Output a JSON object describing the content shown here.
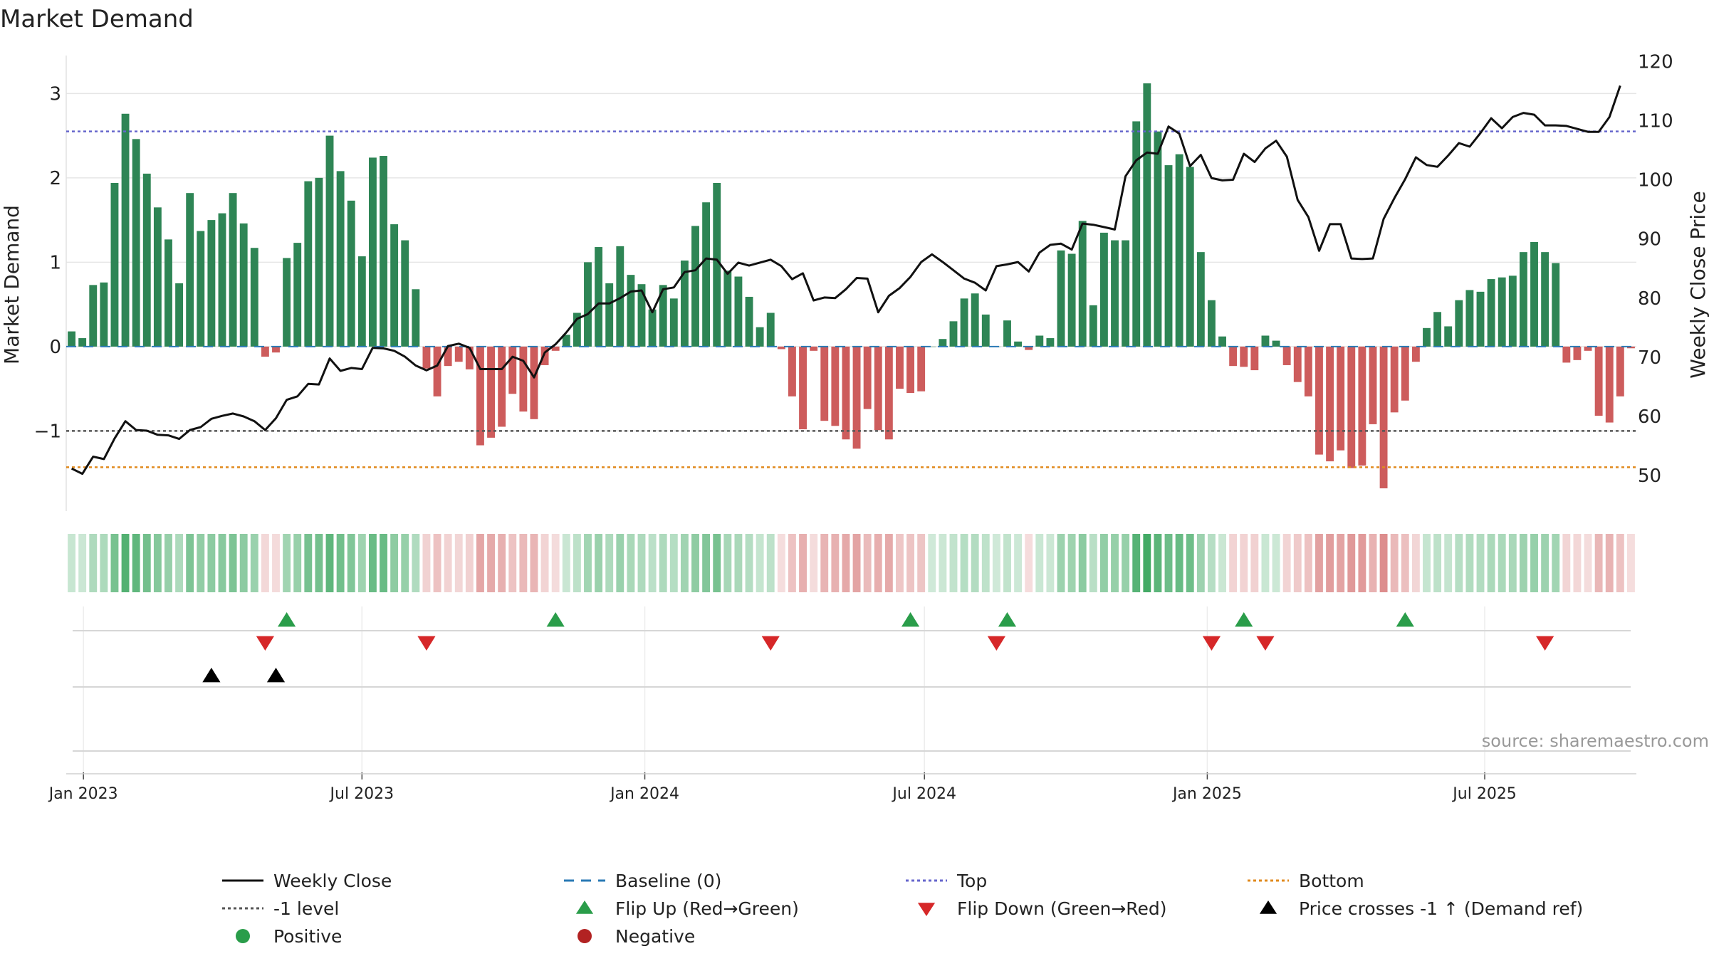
{
  "chart_data": {
    "type": "bar",
    "title": "Market Demand",
    "ylabel_left": "Market Demand",
    "ylabel_right": "Weekly Close Price",
    "ylim_left": [
      -1.95,
      3.45
    ],
    "ylim_right": [
      44,
      121
    ],
    "yticks_left": [
      3,
      2,
      1,
      0,
      -1
    ],
    "ytick_labels_left": [
      "3",
      "2",
      "1",
      "0",
      "−1"
    ],
    "yticks_right": [
      120,
      110,
      100,
      90,
      80,
      70,
      60,
      50
    ],
    "ytick_labels_right": [
      "120",
      "110",
      "100",
      "90",
      "80",
      "70",
      "60",
      "50"
    ],
    "x_ticks": [
      {
        "label": "Jan 2023",
        "week": 1.6
      },
      {
        "label": "Jul 2023",
        "week": 27.5
      },
      {
        "label": "Jan 2024",
        "week": 53.8
      },
      {
        "label": "Jul 2024",
        "week": 79.8
      },
      {
        "label": "Jan 2025",
        "week": 106.1
      },
      {
        "label": "Jul 2025",
        "week": 131.9
      }
    ],
    "n_weeks": 145,
    "reference_lines": {
      "top": 2.55,
      "minus_one": -1.0,
      "bottom": -1.43,
      "baseline": 0
    },
    "series": [
      {
        "name": "Market Demand",
        "values": [
          0.18,
          0.1,
          0.73,
          0.76,
          1.94,
          2.76,
          2.46,
          2.05,
          1.65,
          1.27,
          0.75,
          1.82,
          1.37,
          1.5,
          1.58,
          1.82,
          1.46,
          1.17,
          -0.12,
          -0.07,
          1.05,
          1.23,
          1.96,
          2.0,
          2.5,
          2.08,
          1.73,
          1.07,
          2.24,
          2.26,
          1.45,
          1.26,
          0.68,
          -0.26,
          -0.59,
          -0.23,
          -0.18,
          -0.27,
          -1.17,
          -1.08,
          -0.95,
          -0.56,
          -0.77,
          -0.86,
          -0.22,
          -0.05,
          0.14,
          0.4,
          1.0,
          1.18,
          0.75,
          1.19,
          0.85,
          0.74,
          0.44,
          0.73,
          0.57,
          1.02,
          1.43,
          1.71,
          1.94,
          0.9,
          0.83,
          0.59,
          0.23,
          0.4,
          -0.03,
          -0.59,
          -0.98,
          -0.05,
          -0.88,
          -0.94,
          -1.1,
          -1.21,
          -0.74,
          -0.99,
          -1.1,
          -0.5,
          -0.55,
          -0.53,
          0.0,
          0.09,
          0.3,
          0.57,
          0.63,
          0.38,
          0.0,
          0.31,
          0.06,
          -0.04,
          0.13,
          0.1,
          1.14,
          1.1,
          1.49,
          0.49,
          1.35,
          1.26,
          1.26,
          2.67,
          3.12,
          2.55,
          2.15,
          2.28,
          2.13,
          1.12,
          0.55,
          0.12,
          -0.23,
          -0.24,
          -0.28,
          0.13,
          0.07,
          -0.22,
          -0.42,
          -0.59,
          -1.28,
          -1.36,
          -1.23,
          -1.44,
          -1.41,
          -0.92,
          -1.68,
          -0.78,
          -0.64,
          -0.18,
          0.22,
          0.41,
          0.24,
          0.55,
          0.67,
          0.65,
          0.8,
          0.82,
          0.84,
          1.12,
          1.24,
          1.12,
          0.99,
          -0.19,
          -0.16,
          -0.05,
          -0.82,
          -0.9,
          -0.59,
          -0.02
        ]
      },
      {
        "name": "Weekly Close",
        "values": [
          51.2,
          50.3,
          53.2,
          52.8,
          56.3,
          59.2,
          57.7,
          57.6,
          56.9,
          56.8,
          56.2,
          57.7,
          58.2,
          59.6,
          60.1,
          60.5,
          60.0,
          59.2,
          57.7,
          59.7,
          62.8,
          63.4,
          65.5,
          65.4,
          69.8,
          67.7,
          68.2,
          68.0,
          71.6,
          71.5,
          71.1,
          70.1,
          68.6,
          67.8,
          68.6,
          71.9,
          72.3,
          71.6,
          68.0,
          68.0,
          68.0,
          70.1,
          69.4,
          66.6,
          70.8,
          72.2,
          74.2,
          76.5,
          77.3,
          79.1,
          79.1,
          80.0,
          81.1,
          81.3,
          77.6,
          81.5,
          81.8,
          84.4,
          84.7,
          86.7,
          86.5,
          84.1,
          86.0,
          85.5,
          86.0,
          86.5,
          85.4,
          83.2,
          84.2,
          79.6,
          80.1,
          80.0,
          81.5,
          83.4,
          83.3,
          77.6,
          80.4,
          81.7,
          83.6,
          86.1,
          87.4,
          86.1,
          84.7,
          83.3,
          82.6,
          81.3,
          85.4,
          85.7,
          86.1,
          84.5,
          87.7,
          89.0,
          89.2,
          88.2,
          92.6,
          92.4,
          92.0,
          91.6,
          100.6,
          103.3,
          104.6,
          104.4,
          109.0,
          107.8,
          102.3,
          104.2,
          100.3,
          99.9,
          100.0,
          104.4,
          103.0,
          105.3,
          106.6,
          103.9,
          96.6,
          93.7,
          88.0,
          92.5,
          92.5,
          86.7,
          86.6,
          86.7,
          93.4,
          96.9,
          100.1,
          103.8,
          102.5,
          102.2,
          104.1,
          106.2,
          105.6,
          107.9,
          110.4,
          108.7,
          110.6,
          111.3,
          111.0,
          109.2,
          109.2,
          109.1,
          108.6,
          108.1,
          108.1,
          110.6,
          115.9
        ]
      }
    ],
    "heat_strip": {
      "description": "weekly demand intensity strip",
      "positive_color": "#3fa862",
      "negative_color": "#d26a6a"
    },
    "flip_up_weeks": [
      20,
      45,
      78,
      87,
      109,
      124
    ],
    "flip_down_weeks": [
      18,
      33,
      65,
      86,
      106,
      111,
      137
    ],
    "price_cross_up_weeks": [
      13,
      19
    ],
    "source": "source: sharemaestro.com",
    "legend": [
      {
        "label": "Weekly Close",
        "marker": "line-solid",
        "color": "#111111"
      },
      {
        "label": "Baseline (0)",
        "marker": "line-dashed",
        "color": "#2a7ab5"
      },
      {
        "label": "Top",
        "marker": "line-dotted",
        "color": "#6666cc"
      },
      {
        "label": "Bottom",
        "marker": "line-dotted",
        "color": "#e08a1e"
      },
      {
        "label": "-1 level",
        "marker": "line-dotted",
        "color": "#555555"
      },
      {
        "label": "Flip Up (Red→Green)",
        "marker": "triangle-up",
        "color": "#2a9d4a"
      },
      {
        "label": "Flip Down (Green→Red)",
        "marker": "triangle-down",
        "color": "#d62728"
      },
      {
        "label": "Price crosses -1 ↑ (Demand ref)",
        "marker": "triangle-up",
        "color": "#000000"
      },
      {
        "label": "Positive",
        "marker": "circle",
        "color": "#2a9d4a"
      },
      {
        "label": "Negative",
        "marker": "circle",
        "color": "#b22222"
      }
    ],
    "colors": {
      "positive_bar": "#2e8555",
      "negative_bar": "#cd5c5c",
      "close_line": "#111111",
      "grid": "#e6e6e6"
    }
  }
}
